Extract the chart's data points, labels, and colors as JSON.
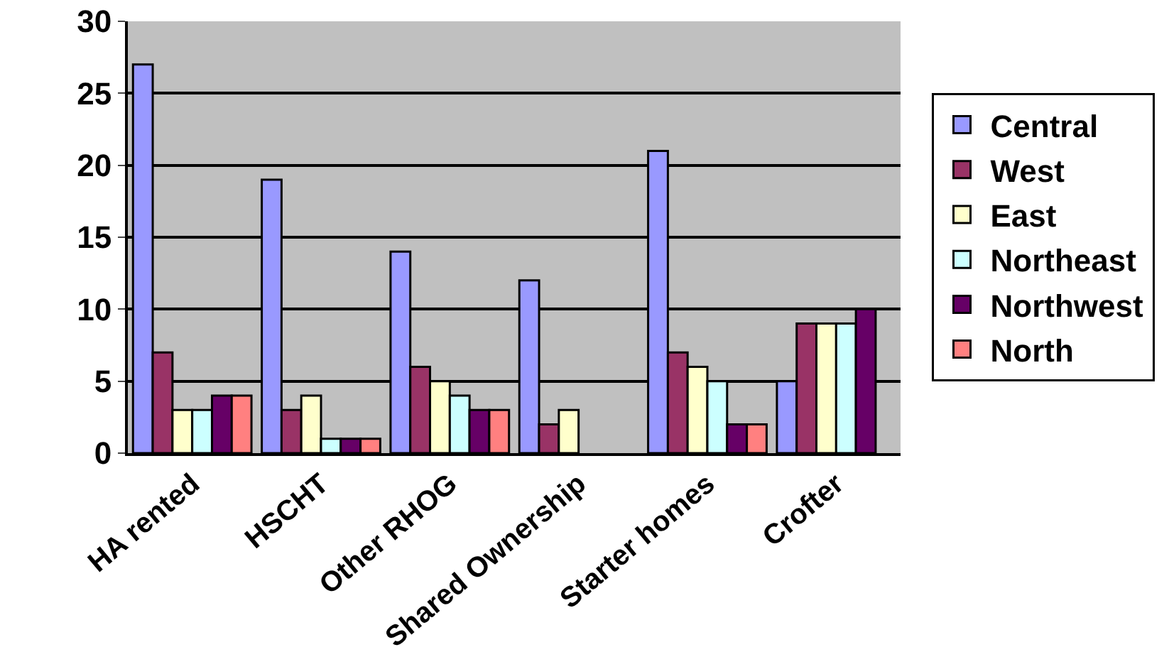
{
  "chart_data": {
    "type": "bar",
    "categories": [
      "HA rented",
      "HSCHT",
      "Other RHOG",
      "Shared Ownership",
      "Starter homes",
      "Crofter"
    ],
    "series": [
      {
        "name": "Central",
        "color": "#9999ff",
        "values": [
          27,
          19,
          14,
          12,
          21,
          5
        ]
      },
      {
        "name": "West",
        "color": "#993366",
        "values": [
          7,
          3,
          6,
          2,
          7,
          9
        ]
      },
      {
        "name": "East",
        "color": "#ffffcc",
        "values": [
          3,
          4,
          5,
          3,
          6,
          9
        ]
      },
      {
        "name": "Northeast",
        "color": "#ccffff",
        "values": [
          3,
          1,
          4,
          0,
          5,
          9
        ]
      },
      {
        "name": "Northwest",
        "color": "#660066",
        "values": [
          4,
          1,
          3,
          0,
          2,
          10
        ]
      },
      {
        "name": "North",
        "color": "#ff8080",
        "values": [
          4,
          1,
          3,
          0,
          2,
          0
        ]
      }
    ],
    "ylim": [
      0,
      30
    ],
    "yticks": [
      0,
      5,
      10,
      15,
      20,
      25,
      30
    ],
    "grid": "y",
    "legend": "right"
  }
}
